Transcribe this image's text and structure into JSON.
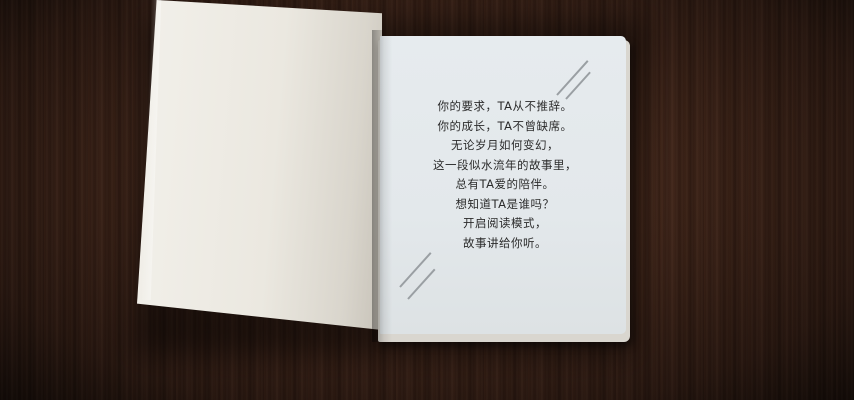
{
  "poem": {
    "lines": [
      "你的要求，TA从不推辞。",
      "你的成长，TA不曾缺席。",
      "无论岁月如何变幻，",
      "这一段似水流年的故事里，",
      "总有TA爱的陪伴。",
      "想知道TA是谁吗？",
      "开启阅读模式，",
      "故事讲给你听。"
    ]
  }
}
